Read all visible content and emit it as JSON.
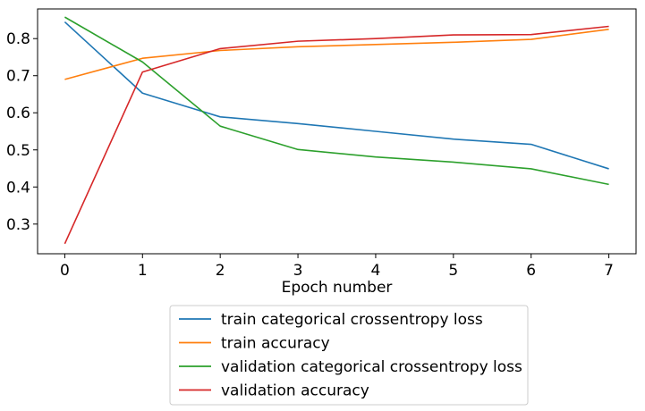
{
  "chart_data": {
    "type": "line",
    "title": "",
    "xlabel": "Epoch number",
    "ylabel": "",
    "x": [
      0,
      1,
      2,
      3,
      4,
      5,
      6,
      7
    ],
    "xlim": [
      -0.35,
      7.35
    ],
    "ylim": [
      0.22,
      0.88
    ],
    "xticks": [
      "0",
      "1",
      "2",
      "3",
      "4",
      "5",
      "6",
      "7"
    ],
    "yticks": [
      0.3,
      0.4,
      0.5,
      0.6,
      0.7,
      0.8
    ],
    "grid": false,
    "legend_position": "below",
    "series": [
      {
        "name": "train categorical crossentropy loss",
        "color": "#1f77b4",
        "values": [
          0.845,
          0.653,
          0.589,
          0.571,
          0.55,
          0.529,
          0.515,
          0.449
        ]
      },
      {
        "name": "train accuracy",
        "color": "#ff7f0e",
        "values": [
          0.69,
          0.747,
          0.768,
          0.778,
          0.784,
          0.79,
          0.798,
          0.825
        ]
      },
      {
        "name": "validation categorical crossentropy loss",
        "color": "#2ca02c",
        "values": [
          0.858,
          0.737,
          0.564,
          0.501,
          0.481,
          0.467,
          0.449,
          0.407
        ]
      },
      {
        "name": "validation accuracy",
        "color": "#d62728",
        "values": [
          0.247,
          0.71,
          0.773,
          0.793,
          0.8,
          0.81,
          0.811,
          0.833
        ]
      }
    ]
  }
}
